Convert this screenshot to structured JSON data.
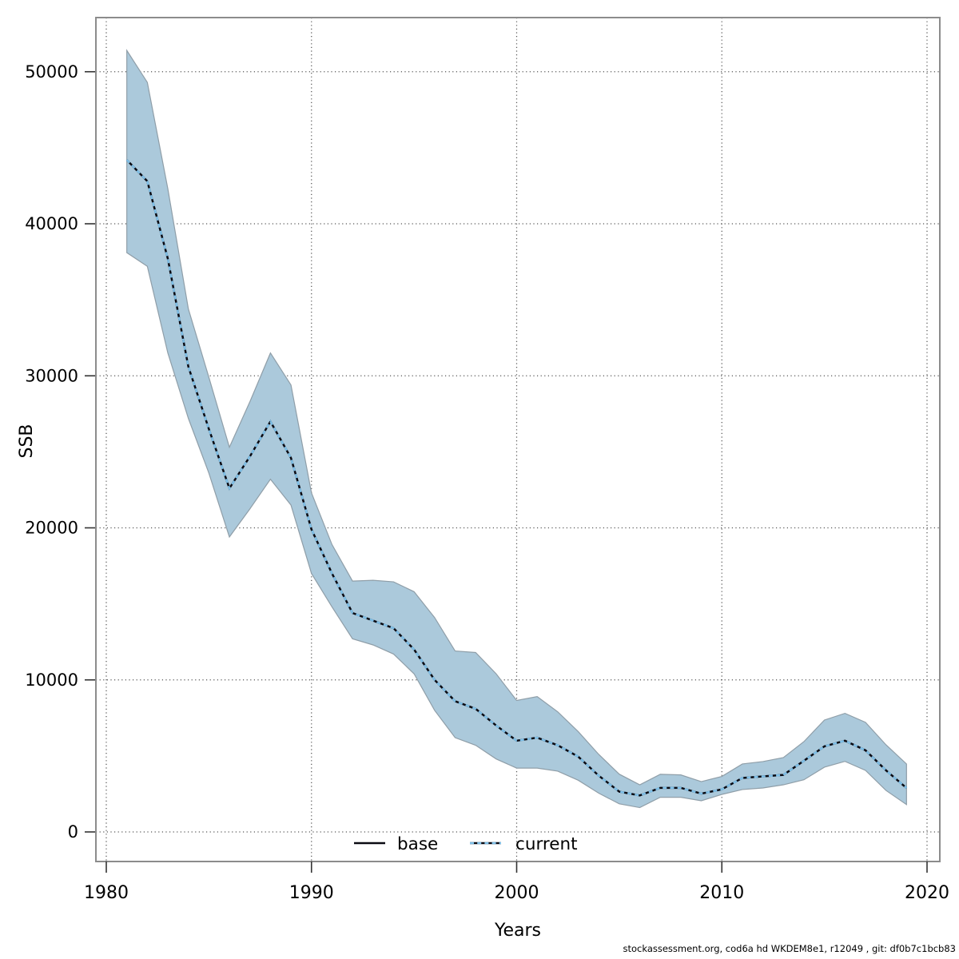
{
  "footer": {
    "text": "stockassessment.org, cod6a hd WKDEM8e1, r12049 , git: df0b7c1bcb83"
  },
  "colors": {
    "band_fill": "#abc9db",
    "band_edge": "#8f9ea8",
    "base_line": "#0a0a12",
    "current_line": "#7fc0e8",
    "grid": "#565656",
    "frame": "#8c8c8c",
    "tick": "#333333",
    "text": "#000000"
  },
  "chart_data": {
    "type": "area",
    "title": "",
    "xlabel": "Years",
    "ylabel": "SSB",
    "grid": true,
    "legend_position": "bottom-center-inside",
    "legend": {
      "base_label": "base",
      "current_label": "current"
    },
    "x_ticks": [
      1980,
      1990,
      2000,
      2010,
      2020
    ],
    "y_ticks": [
      0,
      10000,
      20000,
      30000,
      40000,
      50000
    ],
    "xlim": [
      1979.5,
      2020.6
    ],
    "ylim": [
      -1900,
      53600
    ],
    "years": [
      1981,
      1982,
      1983,
      1984,
      1985,
      1986,
      1987,
      1988,
      1989,
      1990,
      1991,
      1992,
      1993,
      1994,
      1995,
      1996,
      1997,
      1998,
      1999,
      2000,
      2001,
      2002,
      2003,
      2004,
      2005,
      2006,
      2007,
      2008,
      2009,
      2010,
      2011,
      2012,
      2013,
      2014,
      2015,
      2016,
      2017,
      2018,
      2019
    ],
    "series": [
      {
        "name": "estimate",
        "values": [
          44200,
          42800,
          37700,
          30600,
          26500,
          22600,
          24700,
          27000,
          24600,
          19900,
          17000,
          14400,
          13900,
          13400,
          12000,
          10000,
          8600,
          8100,
          7000,
          6000,
          6200,
          5700,
          4950,
          3700,
          2650,
          2400,
          2900,
          2900,
          2520,
          2800,
          3550,
          3650,
          3750,
          4680,
          5630,
          6000,
          5370,
          4050,
          2890
        ]
      },
      {
        "name": "lower_ci",
        "values": [
          38100,
          37200,
          31500,
          27200,
          23600,
          19400,
          21250,
          23200,
          21500,
          17000,
          14800,
          12700,
          12300,
          11700,
          10400,
          8000,
          6200,
          5700,
          4800,
          4200,
          4200,
          4000,
          3400,
          2550,
          1850,
          1600,
          2280,
          2280,
          2050,
          2470,
          2790,
          2890,
          3100,
          3430,
          4260,
          4640,
          4050,
          2730,
          1800
        ]
      },
      {
        "name": "upper_ci",
        "values": [
          51400,
          49300,
          42300,
          34400,
          29900,
          25300,
          28300,
          31500,
          29400,
          22300,
          18900,
          16500,
          16550,
          16450,
          15800,
          14100,
          11900,
          11800,
          10400,
          8650,
          8900,
          7900,
          6600,
          5100,
          3800,
          3100,
          3790,
          3750,
          3310,
          3650,
          4470,
          4630,
          4890,
          5940,
          7360,
          7800,
          7210,
          5730,
          4470
        ]
      }
    ]
  }
}
